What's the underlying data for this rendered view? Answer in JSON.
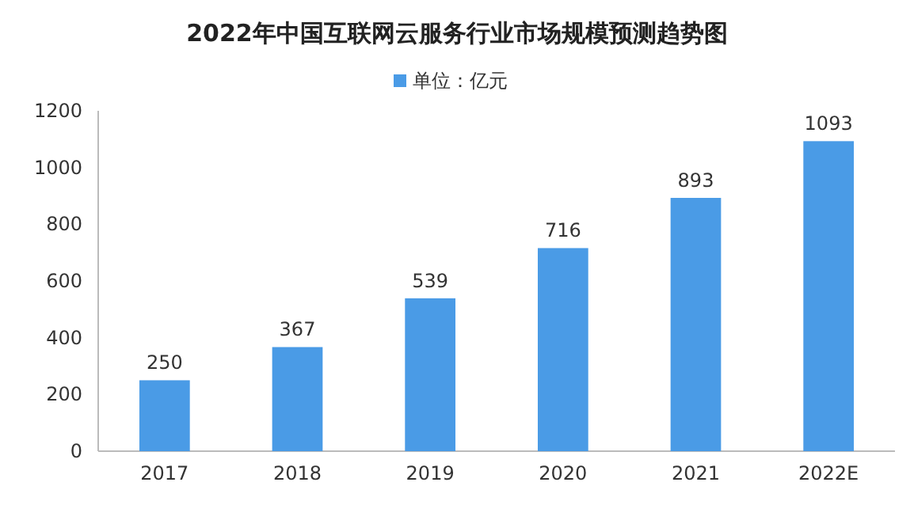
{
  "chart_data": {
    "type": "bar",
    "title": "2022年中国互联网云服务行业市场规模预测趋势图",
    "categories": [
      "2017",
      "2018",
      "2019",
      "2020",
      "2021",
      "2022E"
    ],
    "series": [
      {
        "name": "单位：亿元",
        "color": "#4a9be6",
        "values": [
          250,
          367,
          539,
          716,
          893,
          1093
        ]
      }
    ],
    "ylim": [
      0,
      1200
    ],
    "yticks": [
      0,
      200,
      400,
      600,
      800,
      1000,
      1200
    ],
    "data_labels": true,
    "legend": "top",
    "grid": false
  }
}
